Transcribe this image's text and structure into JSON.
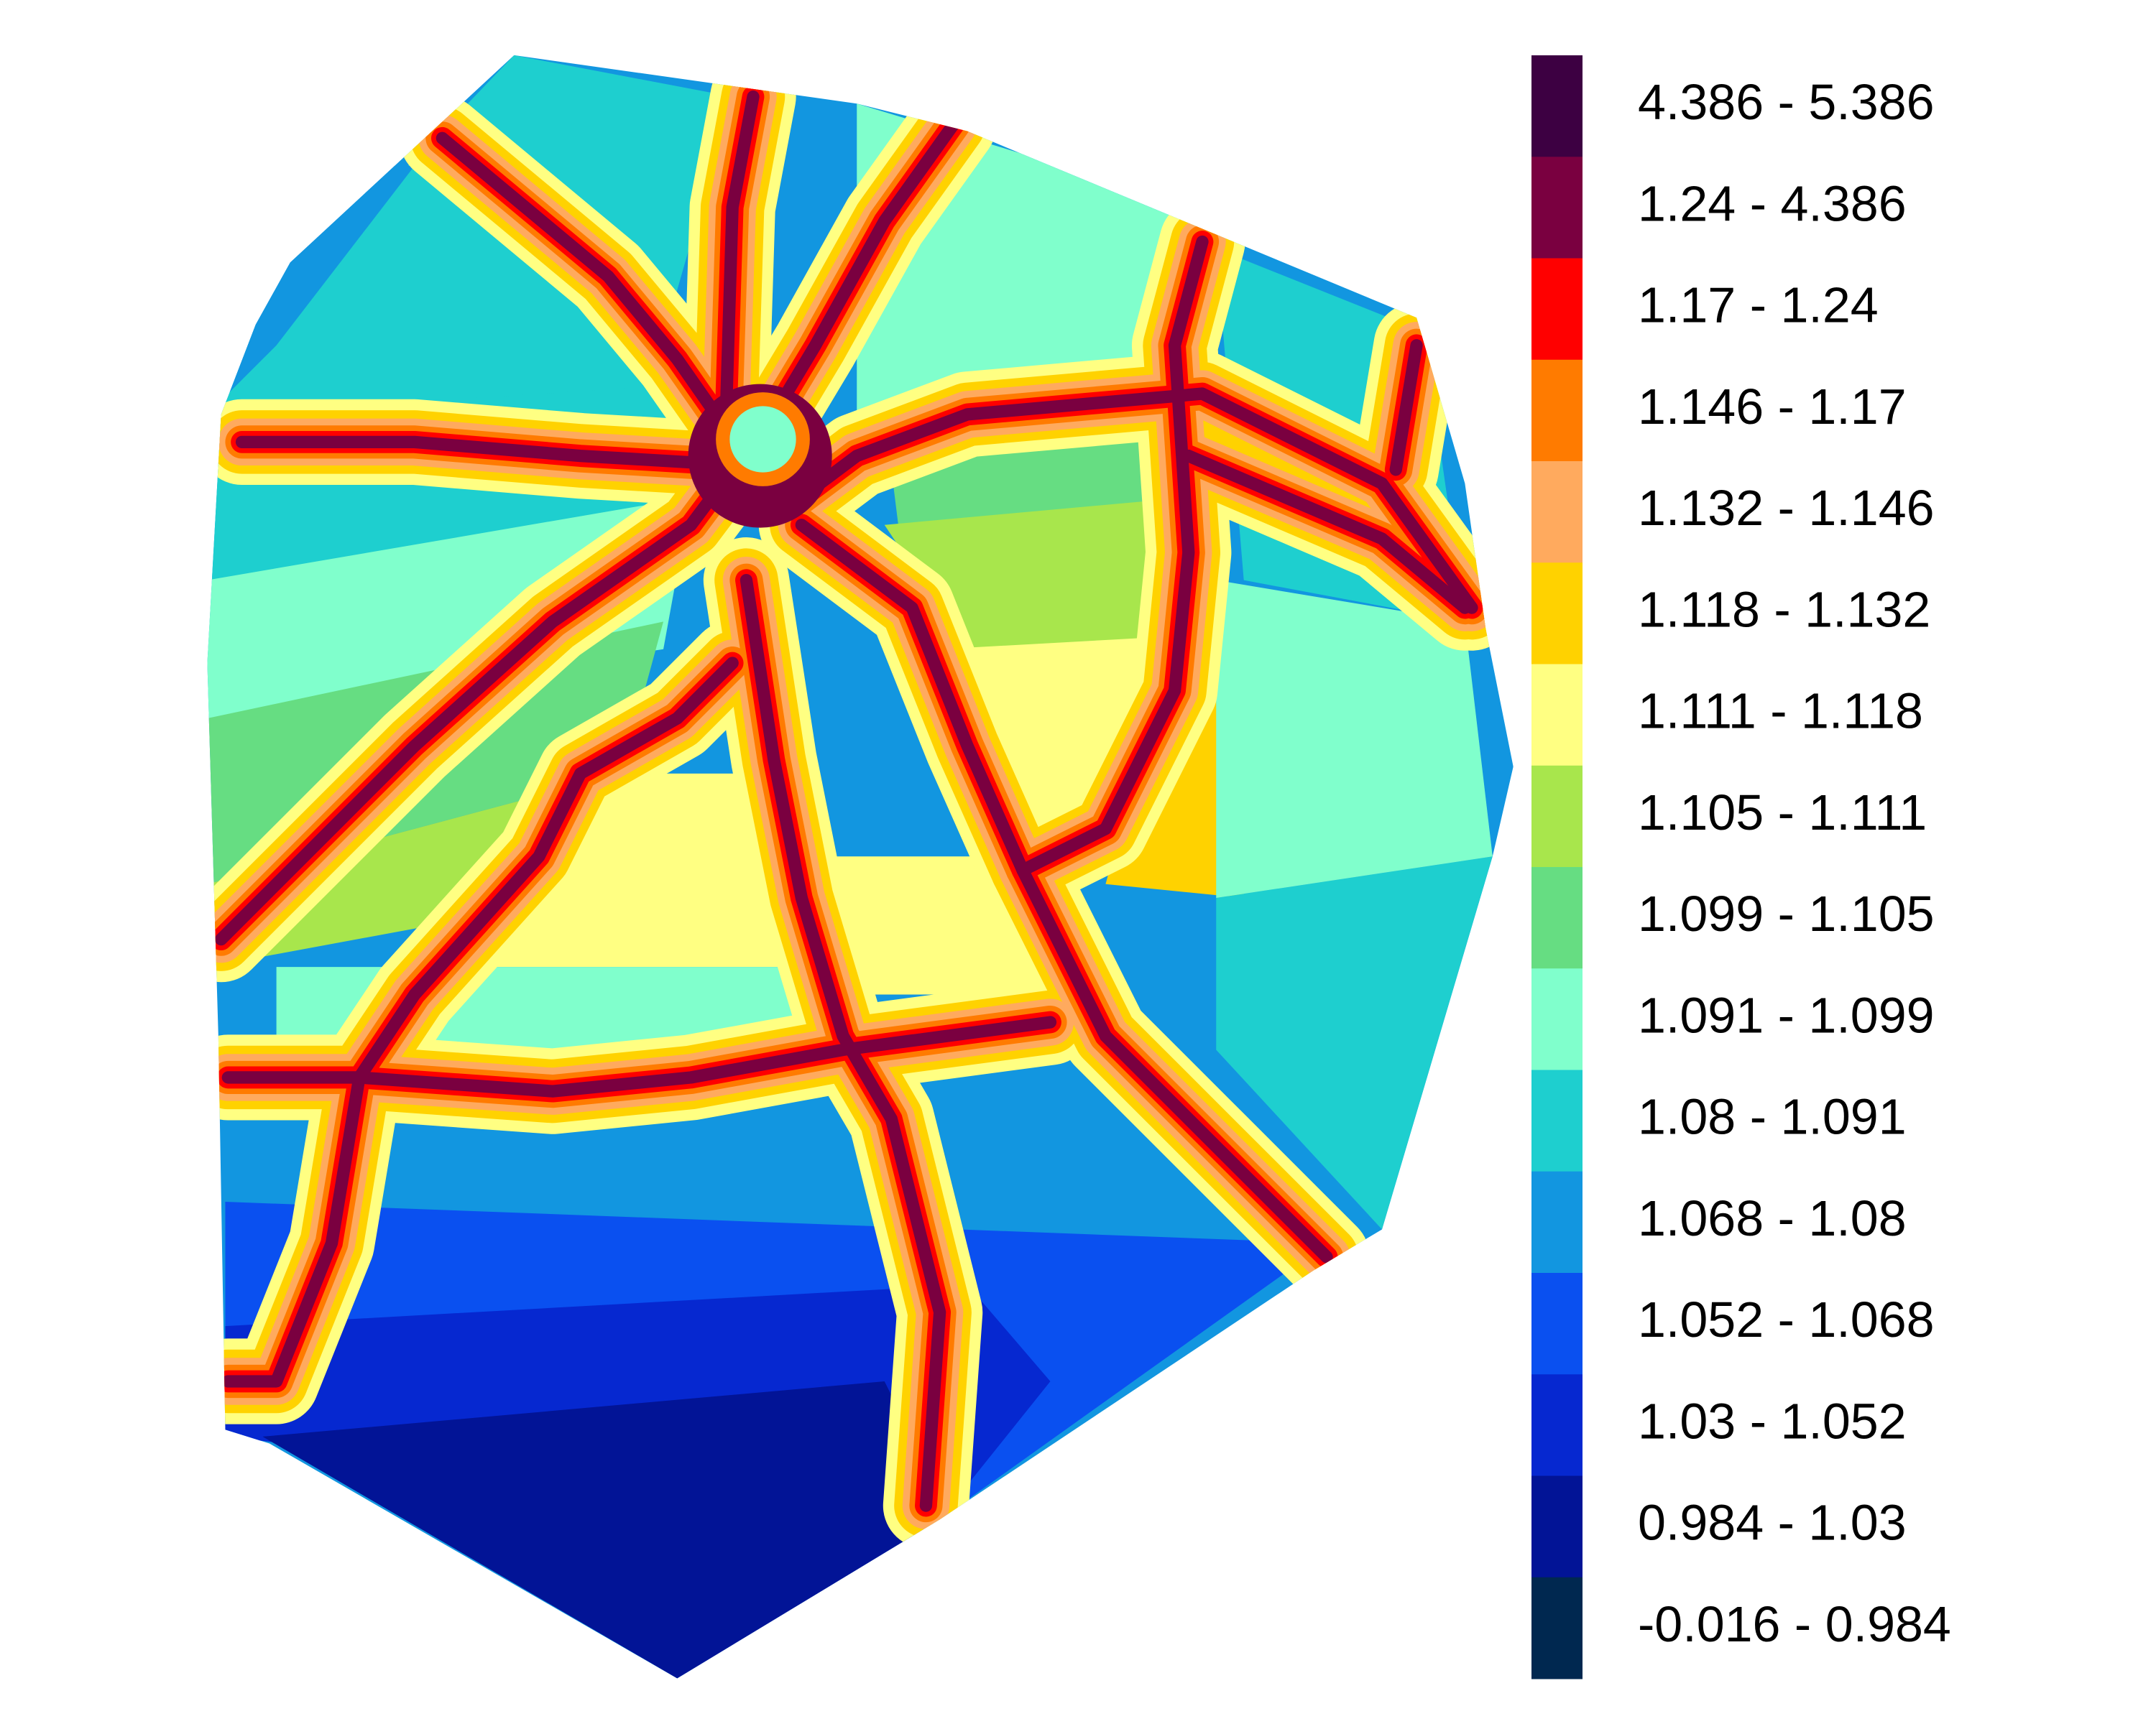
{
  "legend": {
    "items": [
      {
        "label": "4.386 - 5.386",
        "color": "#3d0042"
      },
      {
        "label": "1.24 - 4.386",
        "color": "#7a0040"
      },
      {
        "label": "1.17 - 1.24",
        "color": "#ff0000"
      },
      {
        "label": "1.146 - 1.17",
        "color": "#ff7b00"
      },
      {
        "label": "1.132 - 1.146",
        "color": "#ffaa5e"
      },
      {
        "label": "1.118 - 1.132",
        "color": "#ffd200"
      },
      {
        "label": "1.111 - 1.118",
        "color": "#ffff82"
      },
      {
        "label": "1.105 - 1.111",
        "color": "#a8e64c"
      },
      {
        "label": "1.099 - 1.105",
        "color": "#66dd82"
      },
      {
        "label": "1.091 - 1.099",
        "color": "#80ffcc"
      },
      {
        "label": "1.08 - 1.091",
        "color": "#1ecfcf"
      },
      {
        "label": "1.068 - 1.08",
        "color": "#1296e0"
      },
      {
        "label": "1.052 - 1.068",
        "color": "#0a50f0"
      },
      {
        "label": "1.03 - 1.052",
        "color": "#0628d0"
      },
      {
        "label": "0.984 - 1.03",
        "color": "#021496"
      },
      {
        "label": "-0.016 - 0.984",
        "color": "#002850"
      }
    ]
  }
}
